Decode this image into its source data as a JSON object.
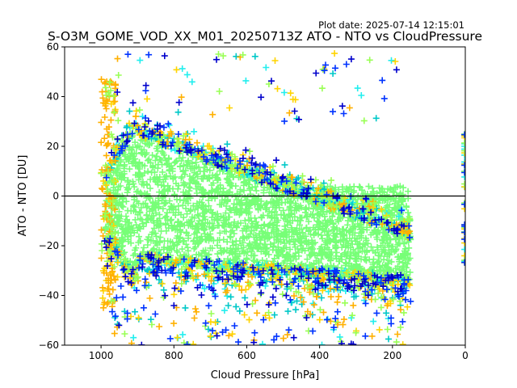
{
  "chart_data": {
    "type": "scatter",
    "title": "S-O3M_GOME_VOD_XX_M01_20250713Z ATO - NTO vs CloudPressure",
    "plot_date": "Plot date: 2025-07-14 12:15:01",
    "xlabel": "Cloud Pressure [hPa]",
    "ylabel": "ATO - NTO [DU]",
    "xlim": [
      1100,
      0
    ],
    "ylim": [
      -60,
      60
    ],
    "x_ticks": [
      1000,
      800,
      600,
      400,
      200,
      0
    ],
    "y_ticks": [
      -60,
      -40,
      -20,
      0,
      20,
      40,
      60
    ],
    "reference_line_y": 0,
    "marker": "+",
    "grid": false,
    "legend": "none",
    "colors": {
      "core": "#77ff77",
      "cyan": "#22eeee",
      "teal": "#00c8c8",
      "yellow": "#ffd400",
      "orange": "#ffb000",
      "lightgreen": "#99ff55",
      "blue": "#0033ff",
      "navy": "#0000cc"
    }
  }
}
